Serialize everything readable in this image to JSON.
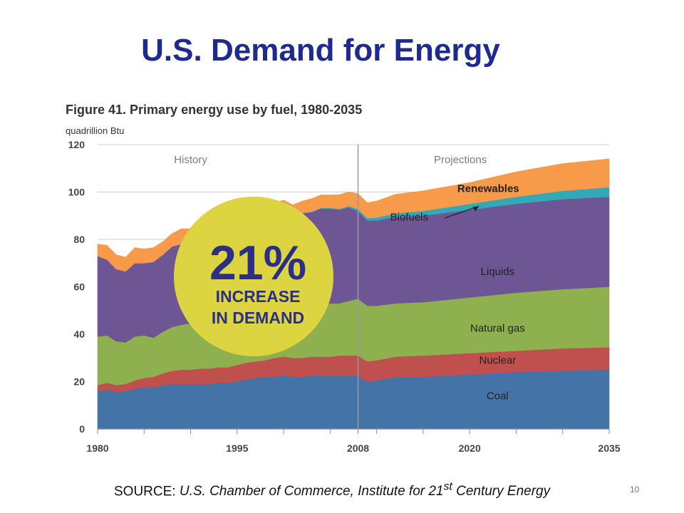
{
  "slide": {
    "title": "U.S. Demand for Energy",
    "page_number": "10"
  },
  "figure": {
    "title": "Figure 41.  Primary energy use by fuel, 1980-2035",
    "unit": "quadrillion Btu"
  },
  "source": {
    "prefix": "SOURCE: ",
    "text_before_sup": "U.S. Chamber of Commerce, Institute for 21",
    "sup": "st",
    "text_after_sup": " Century Energy"
  },
  "badge": {
    "percent": "21%",
    "line1": "INCREASE",
    "line2": "IN DEMAND",
    "color": "#dcd441"
  },
  "chart_data": {
    "type": "area",
    "stacked": true,
    "title": "Figure 41.  Primary energy use by fuel, 1980-2035",
    "ylabel": "quadrillion Btu",
    "xlabel": "",
    "xlim": [
      1980,
      2035
    ],
    "ylim": [
      0,
      120
    ],
    "yticks": [
      0,
      20,
      40,
      60,
      80,
      100,
      120
    ],
    "xticks": [
      1980,
      1995,
      2008,
      2020,
      2035
    ],
    "grid": "horizontal",
    "divider_year": 2008,
    "period_labels": [
      {
        "label": "History",
        "x": 1990
      },
      {
        "label": "Projections",
        "x": 2019
      }
    ],
    "x": [
      1980,
      1981,
      1982,
      1983,
      1984,
      1985,
      1986,
      1987,
      1988,
      1989,
      1990,
      1991,
      1992,
      1993,
      1994,
      1995,
      1996,
      1997,
      1998,
      1999,
      2000,
      2001,
      2002,
      2003,
      2004,
      2005,
      2006,
      2007,
      2008,
      2009,
      2010,
      2012,
      2015,
      2020,
      2025,
      2030,
      2035
    ],
    "series": [
      {
        "name": "Coal",
        "color": "#4473a8",
        "values": [
          16,
          16.5,
          15.5,
          16,
          17,
          17.5,
          17.5,
          18.5,
          19,
          19,
          19,
          19,
          19,
          19.5,
          19.5,
          20,
          21,
          21.5,
          22,
          22,
          22.5,
          22,
          22,
          22.5,
          22.5,
          22.5,
          22.5,
          22.5,
          22.5,
          20,
          20.5,
          22,
          22,
          23,
          24,
          24.5,
          25
        ]
      },
      {
        "name": "Nuclear",
        "color": "#c0504d",
        "values": [
          2.5,
          3,
          3,
          3,
          3.5,
          4,
          4.5,
          5,
          5.5,
          6,
          6,
          6.5,
          6.5,
          6.5,
          6.5,
          7,
          7,
          7,
          7,
          8,
          8,
          8,
          8,
          8,
          8,
          8,
          8.5,
          8.5,
          8.5,
          8.5,
          8.5,
          8.5,
          9,
          9,
          9,
          9.5,
          9.5
        ]
      },
      {
        "name": "Natural gas",
        "color": "#8fb04e",
        "values": [
          20.5,
          20,
          18.5,
          17.5,
          18.5,
          18,
          16.5,
          17.5,
          18.5,
          19,
          19.5,
          20,
          20,
          20.5,
          21,
          22,
          22.5,
          22.5,
          22.5,
          22.5,
          23,
          22.5,
          23,
          22.5,
          22.5,
          22.5,
          22,
          23,
          24,
          23.5,
          23,
          22.5,
          22.5,
          23.5,
          24.5,
          25,
          25.5
        ]
      },
      {
        "name": "Liquids",
        "color": "#6e5594",
        "values": [
          34,
          32,
          30.5,
          30,
          31,
          30.5,
          32,
          32.5,
          34,
          34,
          33.5,
          32.5,
          33,
          33.5,
          34.5,
          34.5,
          36,
          36,
          36.5,
          37.5,
          38,
          37.5,
          38,
          38.5,
          40,
          40,
          39.5,
          39.5,
          37,
          36,
          36,
          36.5,
          36.5,
          37,
          37.5,
          38,
          38
        ]
      },
      {
        "name": "Biofuels",
        "color": "#31a9b8",
        "values": [
          0,
          0,
          0,
          0,
          0,
          0,
          0,
          0,
          0,
          0,
          0,
          0,
          0,
          0,
          0,
          0,
          0,
          0,
          0,
          0,
          0.1,
          0.1,
          0.2,
          0.2,
          0.3,
          0.3,
          0.4,
          0.6,
          0.8,
          1,
          1.2,
          1.5,
          2,
          2.5,
          3,
          3.5,
          4
        ]
      },
      {
        "name": "Renewables",
        "color": "#f79a4a",
        "values": [
          5,
          6,
          6,
          6,
          6.5,
          6,
          6,
          5.5,
          5.5,
          6.5,
          6.5,
          6,
          6,
          6,
          5.5,
          6,
          6.5,
          6,
          5.5,
          5.5,
          5,
          4.5,
          5,
          5.5,
          5.5,
          5.5,
          6,
          6,
          6.5,
          6.5,
          7,
          8,
          8.5,
          9,
          10.5,
          11.5,
          12
        ]
      }
    ],
    "series_labels": [
      {
        "name": "Coal",
        "x": 2023,
        "y": 12.5
      },
      {
        "name": "Nuclear",
        "x": 2023,
        "y": 27.5
      },
      {
        "name": "Natural gas",
        "x": 2023,
        "y": 41
      },
      {
        "name": "Liquids",
        "x": 2023,
        "y": 65
      },
      {
        "name": "Biofuels",
        "x": 2013.5,
        "y": 88
      },
      {
        "name": "Renewables",
        "x": 2022,
        "y": 100
      }
    ]
  }
}
